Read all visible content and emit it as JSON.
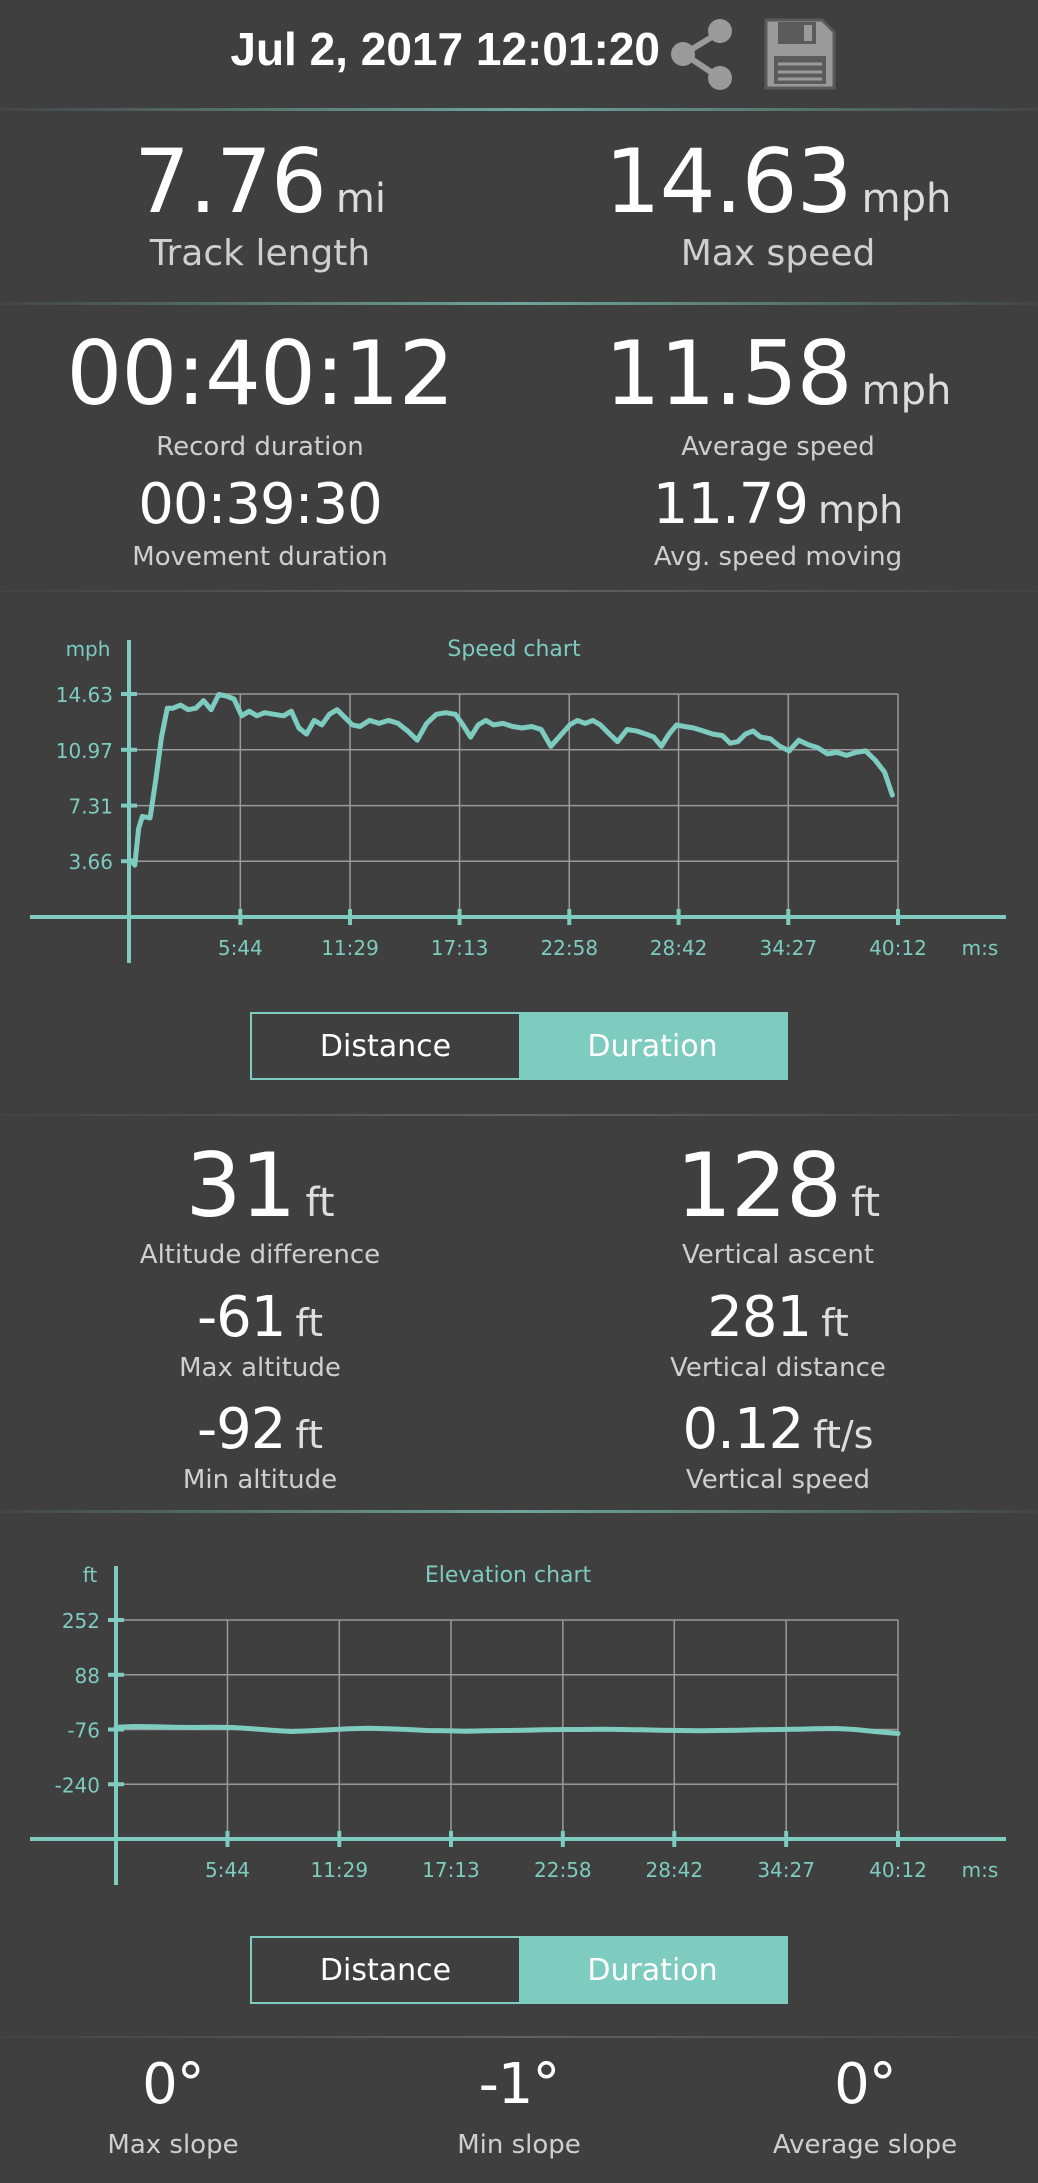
{
  "header": {
    "title": "Jul 2, 2017 12:01:20",
    "share_icon": "share-icon",
    "save_icon": "floppy-disk-icon"
  },
  "colors": {
    "accent": "#7ecbbf",
    "background": "#3f3f3f",
    "grid": "#9a9a9a"
  },
  "summary": {
    "track_length": {
      "value": "7.76",
      "unit": "mi",
      "label": "Track length"
    },
    "max_speed": {
      "value": "14.63",
      "unit": "mph",
      "label": "Max speed"
    },
    "record_duration": {
      "value": "00:40:12",
      "label": "Record duration"
    },
    "average_speed": {
      "value": "11.58",
      "unit": "mph",
      "label": "Average speed"
    },
    "movement_duration": {
      "value": "00:39:30",
      "label": "Movement duration"
    },
    "avg_speed_moving": {
      "value": "11.79",
      "unit": "mph",
      "label": "Avg. speed moving"
    }
  },
  "altitude": {
    "altitude_difference": {
      "value": "31",
      "unit": "ft",
      "label": "Altitude difference"
    },
    "vertical_ascent": {
      "value": "128",
      "unit": "ft",
      "label": "Vertical ascent"
    },
    "max_altitude": {
      "value": "-61",
      "unit": "ft",
      "label": "Max altitude"
    },
    "vertical_distance": {
      "value": "281",
      "unit": "ft",
      "label": "Vertical distance"
    },
    "min_altitude": {
      "value": "-92",
      "unit": "ft",
      "label": "Min altitude"
    },
    "vertical_speed": {
      "value": "0.12",
      "unit": "ft/s",
      "label": "Vertical speed"
    }
  },
  "slope": {
    "max": {
      "value": "0°",
      "label": "Max slope"
    },
    "min": {
      "value": "-1°",
      "label": "Min slope"
    },
    "avg": {
      "value": "0°",
      "label": "Average slope"
    }
  },
  "toggles": {
    "speed": {
      "distance": "Distance",
      "duration": "Duration",
      "active": "duration"
    },
    "elevation": {
      "distance": "Distance",
      "duration": "Duration",
      "active": "duration"
    }
  },
  "chart_data": [
    {
      "type": "line",
      "title": "Speed chart",
      "ylabel": "mph",
      "xlabel": "m:s",
      "y_ticks": [
        "14.63",
        "10.97",
        "7.31",
        "3.66"
      ],
      "y_tick_values": [
        14.63,
        10.97,
        7.31,
        3.66
      ],
      "x_ticks": [
        "5:44",
        "11:29",
        "17:13",
        "22:58",
        "28:42",
        "34:27",
        "40:12"
      ],
      "x_tick_values": [
        5.73,
        11.48,
        17.22,
        22.97,
        28.7,
        34.45,
        40.2
      ],
      "xlim": [
        0,
        40.2
      ],
      "ylim": [
        0,
        14.63
      ],
      "grid": true,
      "series": [
        {
          "color": "#7ecbbf",
          "x": [
            0,
            0.2,
            0.4,
            0.6,
            1.0,
            1.3,
            1.6,
            1.9,
            2.2,
            2.6,
            3.0,
            3.4,
            3.8,
            4.2,
            4.6,
            5.0,
            5.4,
            5.8,
            6.2,
            6.6,
            7.0,
            7.5,
            8.0,
            8.4,
            8.8,
            9.2,
            9.6,
            10.0,
            10.4,
            10.8,
            11.2,
            11.6,
            12.0,
            12.5,
            13.0,
            13.5,
            14.0,
            14.5,
            15.0,
            15.5,
            16.0,
            16.5,
            17.0,
            17.4,
            17.8,
            18.2,
            18.6,
            19.0,
            19.5,
            20.0,
            20.5,
            21.0,
            21.5,
            22.0,
            22.5,
            23.0,
            23.4,
            23.8,
            24.2,
            24.6,
            25.0,
            25.5,
            26.0,
            26.5,
            27.0,
            27.4,
            27.8,
            28.2,
            28.6,
            29.0,
            29.5,
            30.0,
            30.5,
            31.0,
            31.4,
            31.8,
            32.2,
            32.6,
            33.0,
            33.5,
            34.0,
            34.5,
            35.0,
            35.5,
            36.0,
            36.5,
            37.0,
            37.5,
            38.0,
            38.5,
            39.0,
            39.5,
            39.9
          ],
          "y": [
            3.7,
            3.4,
            5.8,
            6.6,
            6.5,
            9.0,
            11.8,
            13.7,
            13.7,
            13.9,
            13.6,
            13.7,
            14.2,
            13.6,
            14.6,
            14.5,
            14.3,
            13.2,
            13.5,
            13.2,
            13.4,
            13.3,
            13.2,
            13.5,
            12.4,
            12.0,
            12.9,
            12.6,
            13.3,
            13.6,
            13.1,
            12.6,
            12.5,
            12.9,
            12.7,
            12.9,
            12.7,
            12.2,
            11.6,
            12.7,
            13.3,
            13.4,
            13.3,
            12.6,
            11.8,
            12.6,
            12.9,
            12.6,
            12.7,
            12.5,
            12.4,
            12.5,
            12.3,
            11.2,
            11.9,
            12.6,
            12.9,
            12.7,
            12.9,
            12.6,
            12.1,
            11.5,
            12.3,
            12.2,
            12.0,
            11.8,
            11.2,
            12.0,
            12.6,
            12.5,
            12.4,
            12.2,
            12.0,
            11.9,
            11.4,
            11.5,
            12.0,
            12.2,
            11.8,
            11.7,
            11.2,
            10.9,
            11.6,
            11.3,
            11.1,
            10.7,
            10.8,
            10.6,
            10.8,
            10.9,
            10.3,
            9.5,
            8.0
          ]
        }
      ]
    },
    {
      "type": "line",
      "title": "Elevation chart",
      "ylabel": "ft",
      "xlabel": "m:s",
      "y_ticks": [
        "252",
        "88",
        "-76",
        "-240"
      ],
      "y_tick_values": [
        252,
        88,
        -76,
        -240
      ],
      "x_ticks": [
        "5:44",
        "11:29",
        "17:13",
        "22:58",
        "28:42",
        "34:27",
        "40:12"
      ],
      "x_tick_values": [
        5.73,
        11.48,
        17.22,
        22.97,
        28.7,
        34.45,
        40.2
      ],
      "xlim": [
        0,
        40.2
      ],
      "ylim": [
        -404,
        252
      ],
      "grid": true,
      "series": [
        {
          "color": "#7ecbbf",
          "x": [
            0,
            1,
            2,
            3,
            4,
            5,
            6,
            7,
            8,
            9,
            10,
            11,
            12,
            13,
            14,
            15,
            16,
            17,
            18,
            19,
            20,
            21,
            22,
            23,
            24,
            25,
            26,
            27,
            28,
            29,
            30,
            31,
            32,
            33,
            34,
            35,
            36,
            37,
            38,
            39,
            40.2
          ],
          "y": [
            -69,
            -67,
            -68,
            -69,
            -70,
            -69,
            -70,
            -74,
            -78,
            -82,
            -80,
            -77,
            -74,
            -72,
            -74,
            -76,
            -79,
            -80,
            -81,
            -80,
            -79,
            -78,
            -77,
            -76,
            -76,
            -75,
            -76,
            -77,
            -78,
            -79,
            -80,
            -79,
            -78,
            -77,
            -76,
            -75,
            -74,
            -73,
            -76,
            -82,
            -88
          ]
        }
      ]
    }
  ]
}
